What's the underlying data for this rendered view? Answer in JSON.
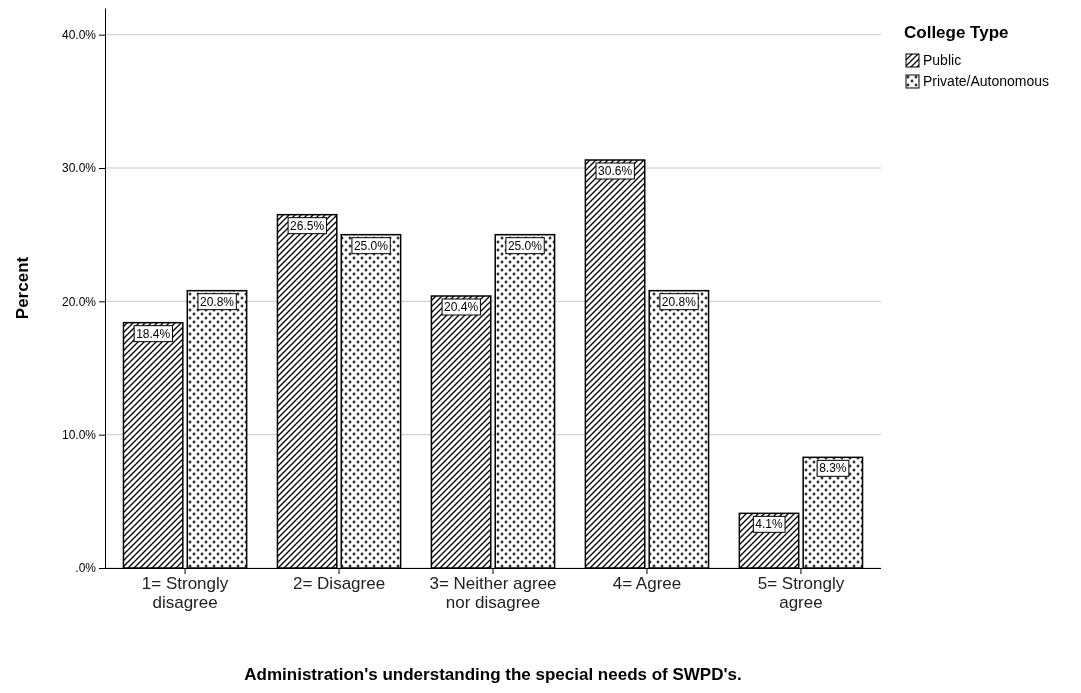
{
  "chart_data": {
    "type": "bar",
    "xlabel": "Administration's understanding the special needs of SWPD's.",
    "ylabel": "Percent",
    "legend_title": "College Type",
    "categories": [
      "1= Strongly disagree",
      "2= Disagree",
      "3= Neither agree nor disagree",
      "4= Agree",
      "5= Strongly agree"
    ],
    "series": [
      {
        "name": "Public",
        "color": "#000000",
        "values": [
          18.4,
          26.5,
          20.4,
          30.6,
          4.1
        ],
        "value_labels": [
          "18.4%",
          "26.5%",
          "20.4%",
          "30.6%",
          "4.1%"
        ]
      },
      {
        "name": "Private/Autonomous",
        "color": "#000000",
        "values": [
          20.8,
          25.0,
          25.0,
          20.8,
          8.3
        ],
        "value_labels": [
          "20.8%",
          "25.0%",
          "25.0%",
          "20.8%",
          "8.3%"
        ]
      }
    ],
    "ylim": [
      0,
      42
    ],
    "yticks": [
      {
        "value": 0,
        "label": ".0%"
      },
      {
        "value": 10,
        "label": "10.0%"
      },
      {
        "value": 20,
        "label": "20.0%"
      },
      {
        "value": 30,
        "label": "30.0%"
      },
      {
        "value": 40,
        "label": "40.0%"
      }
    ],
    "grid": "y",
    "legend": "top right"
  }
}
